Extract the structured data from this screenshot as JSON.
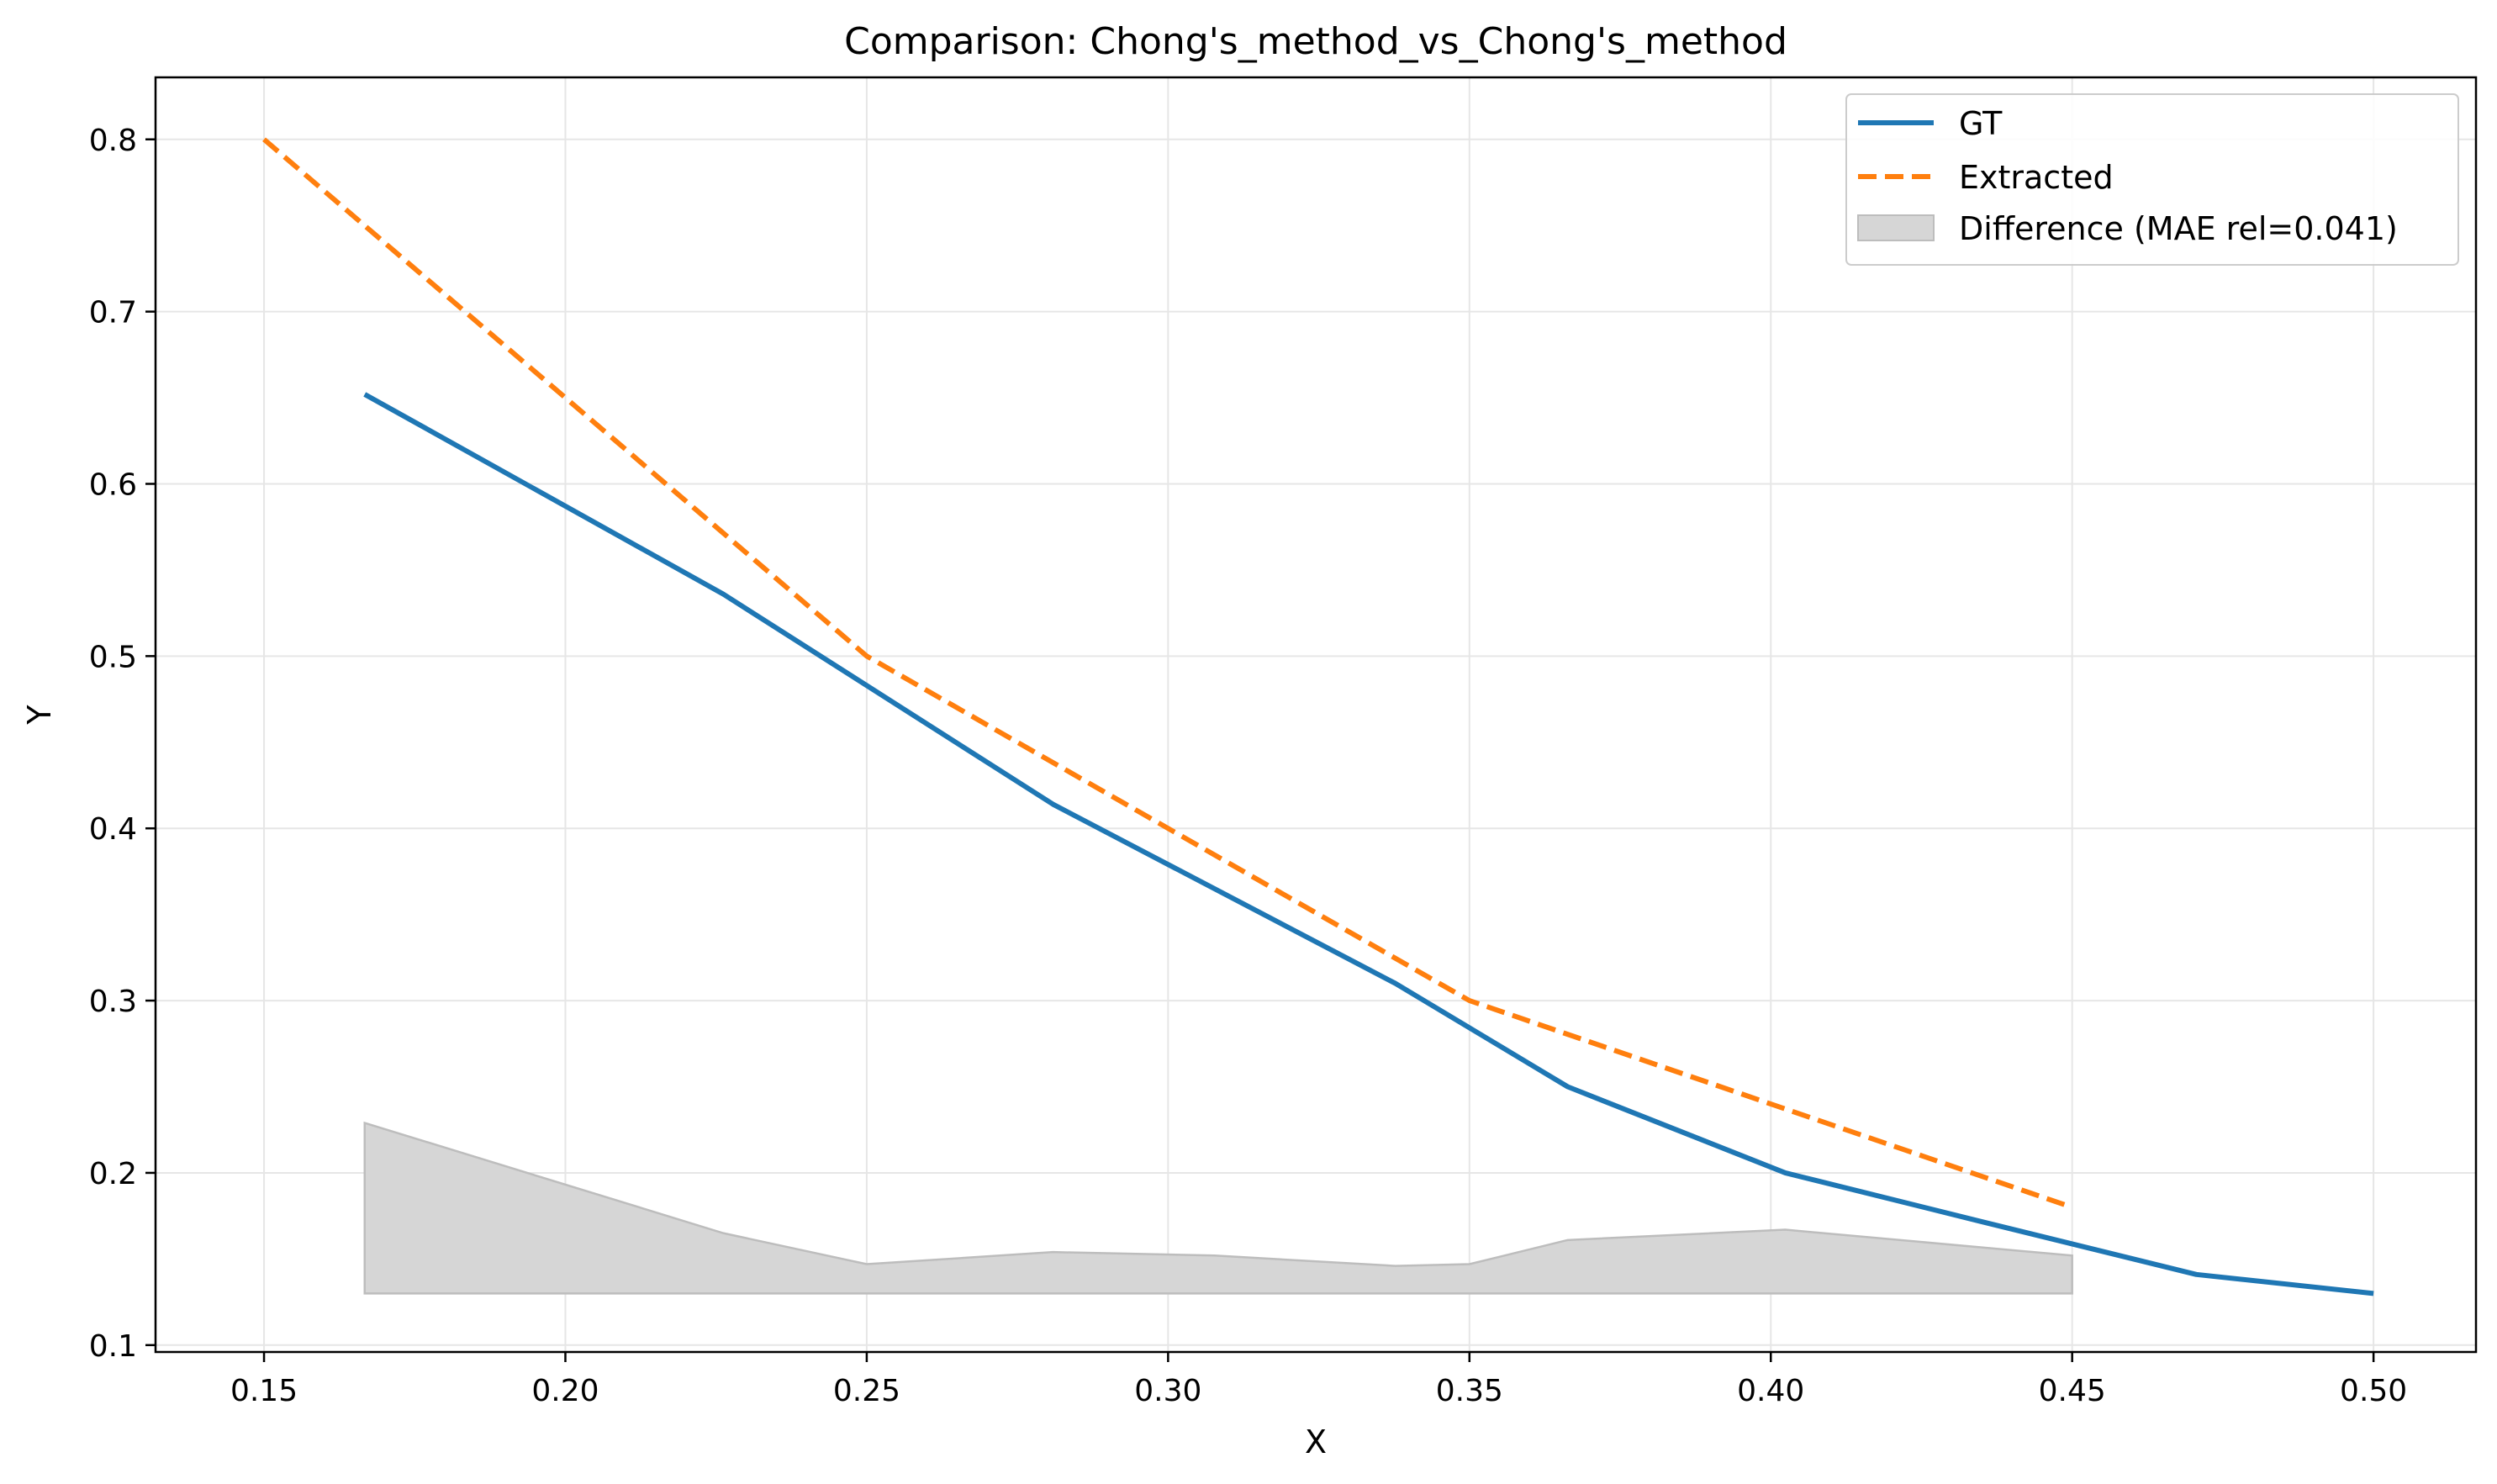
{
  "chart_data": {
    "type": "line",
    "title": "Comparison: Chong's_method_vs_Chong's_method",
    "xlabel": "X",
    "ylabel": "Y",
    "xlim": [
      0.132,
      0.517
    ],
    "ylim": [
      0.096,
      0.836
    ],
    "x_ticks": [
      "0.15",
      "0.20",
      "0.25",
      "0.30",
      "0.35",
      "0.40",
      "0.45",
      "0.50"
    ],
    "y_ticks": [
      "0.1",
      "0.2",
      "0.3",
      "0.4",
      "0.5",
      "0.6",
      "0.7",
      "0.8"
    ],
    "grid": true,
    "legend_position": "top-right",
    "series": [
      {
        "name": "GT",
        "color": "#1f77b4",
        "style": "solid",
        "points": [
          [
            0.1667,
            0.652
          ],
          [
            0.2262,
            0.536
          ],
          [
            0.2809,
            0.414
          ],
          [
            0.3377,
            0.31
          ],
          [
            0.3663,
            0.25
          ],
          [
            0.4024,
            0.2
          ],
          [
            0.4346,
            0.172
          ],
          [
            0.4706,
            0.141
          ],
          [
            0.5,
            0.13
          ]
        ]
      },
      {
        "name": "Extracted",
        "color": "#ff7f0e",
        "style": "dashed",
        "points": [
          [
            0.15,
            0.8
          ],
          [
            0.25,
            0.5
          ],
          [
            0.35,
            0.3
          ],
          [
            0.45,
            0.18
          ]
        ]
      }
    ],
    "difference_band": {
      "name": "Difference (MAE rel=0.041)",
      "color": "#d6d6d6",
      "baseline": 0.13,
      "points": [
        [
          0.1667,
          0.229
        ],
        [
          0.2262,
          0.165
        ],
        [
          0.25,
          0.147
        ],
        [
          0.2809,
          0.154
        ],
        [
          0.3077,
          0.152
        ],
        [
          0.3377,
          0.146
        ],
        [
          0.35,
          0.147
        ],
        [
          0.3663,
          0.161
        ],
        [
          0.4024,
          0.167
        ],
        [
          0.45,
          0.152
        ]
      ]
    }
  }
}
